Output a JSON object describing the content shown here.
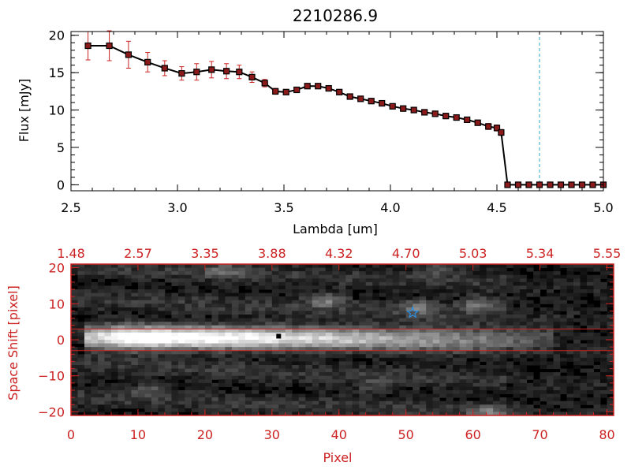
{
  "colors": {
    "axis_top": "#000000",
    "axis_bottom": "#cc2222",
    "marker": "#8b1a1a",
    "errorbar": "#cc2222",
    "limit_line": "#2aa7c9",
    "aperture": "#cc2222",
    "star": "#2b8fe0"
  },
  "chart_data": [
    {
      "type": "line",
      "title": "2210286.9",
      "xlabel": "Lambda [um]",
      "ylabel": "Flux [mJy]",
      "xlim": [
        2.5,
        5.0
      ],
      "ylim": [
        -0.8,
        20.5
      ],
      "xticks": [
        2.5,
        3.0,
        3.5,
        4.0,
        4.5,
        5.0
      ],
      "xtick_labels": [
        "2.5",
        "3.0",
        "3.5",
        "4.0",
        "4.5",
        "5.0"
      ],
      "yticks": [
        0,
        5,
        10,
        15,
        20
      ],
      "ytick_labels": [
        "0",
        "5",
        "10",
        "15",
        "20"
      ],
      "reference_line_x": 4.7,
      "series": [
        {
          "x": [
            2.58,
            2.68,
            2.77,
            2.86,
            2.94,
            3.02,
            3.09,
            3.16,
            3.23,
            3.29,
            3.35,
            3.41,
            3.46,
            3.51,
            3.56,
            3.61,
            3.66,
            3.71,
            3.76,
            3.81,
            3.86,
            3.91,
            3.96,
            4.01,
            4.06,
            4.11,
            4.16,
            4.21,
            4.26,
            4.31,
            4.36,
            4.41,
            4.46,
            4.5,
            4.52,
            4.55,
            4.6,
            4.65,
            4.7,
            4.75,
            4.8,
            4.85,
            4.9,
            4.95,
            5.0
          ],
          "y": [
            18.6,
            18.6,
            17.4,
            16.4,
            15.6,
            14.9,
            15.1,
            15.4,
            15.2,
            15.1,
            14.4,
            13.6,
            12.5,
            12.4,
            12.7,
            13.2,
            13.2,
            12.9,
            12.4,
            11.8,
            11.5,
            11.2,
            10.9,
            10.5,
            10.2,
            10.0,
            9.7,
            9.5,
            9.2,
            9.0,
            8.7,
            8.3,
            7.8,
            7.6,
            7.0,
            0.0,
            0.0,
            0.0,
            0.0,
            0.0,
            0.0,
            0.0,
            0.0,
            0.0,
            0.0
          ],
          "yerr": [
            1.9,
            2.0,
            1.8,
            1.3,
            1.0,
            0.9,
            1.1,
            1.1,
            1.0,
            0.9,
            0.7,
            0.5,
            0.4,
            0.3,
            0.3,
            0.3,
            0.3,
            0.3,
            0.3,
            0.3,
            0.3,
            0.3,
            0.3,
            0.3,
            0.3,
            0.3,
            0.3,
            0.3,
            0.3,
            0.3,
            0.3,
            0.3,
            0.4,
            0.4,
            0.4,
            0,
            0,
            0,
            0,
            0,
            0,
            0,
            0,
            0,
            0
          ]
        }
      ]
    },
    {
      "type": "heatmap",
      "xlabel": "Pixel",
      "ylabel": "Space Shift [pixel]",
      "xlim": [
        0,
        81
      ],
      "ylim": [
        -21,
        21
      ],
      "xticks": [
        0,
        10,
        20,
        30,
        40,
        50,
        60,
        70,
        80
      ],
      "xtick_labels": [
        "0",
        "10",
        "20",
        "30",
        "40",
        "50",
        "60",
        "70",
        "80"
      ],
      "yticks": [
        -20,
        -10,
        0,
        10,
        20
      ],
      "ytick_labels": [
        "−20",
        "−10",
        "0",
        "10",
        "20"
      ],
      "top_axis_labels": [
        "1.48",
        "2.57",
        "3.35",
        "3.88",
        "4.32",
        "4.70",
        "5.03",
        "5.34",
        "5.55"
      ],
      "aperture_y": [
        -3,
        3
      ],
      "star_marker": {
        "x": 51,
        "y": 7.5
      },
      "center_marker": {
        "x": 31,
        "y": 1
      },
      "trace": {
        "x_start": 2,
        "x_end": 72,
        "peak_x": 9,
        "y": 0.5
      },
      "blobs": [
        {
          "x": 38,
          "y": 11,
          "strength": 0.35
        },
        {
          "x": 52,
          "y": 9,
          "strength": 0.3
        },
        {
          "x": 61,
          "y": 10,
          "strength": 0.35
        },
        {
          "x": 23,
          "y": 19,
          "strength": 0.25
        },
        {
          "x": 55,
          "y": 20,
          "strength": 0.25
        },
        {
          "x": 62,
          "y": -20,
          "strength": 0.3
        },
        {
          "x": 12,
          "y": -14,
          "strength": 0.2
        },
        {
          "x": 45,
          "y": -13,
          "strength": 0.15
        }
      ]
    }
  ]
}
